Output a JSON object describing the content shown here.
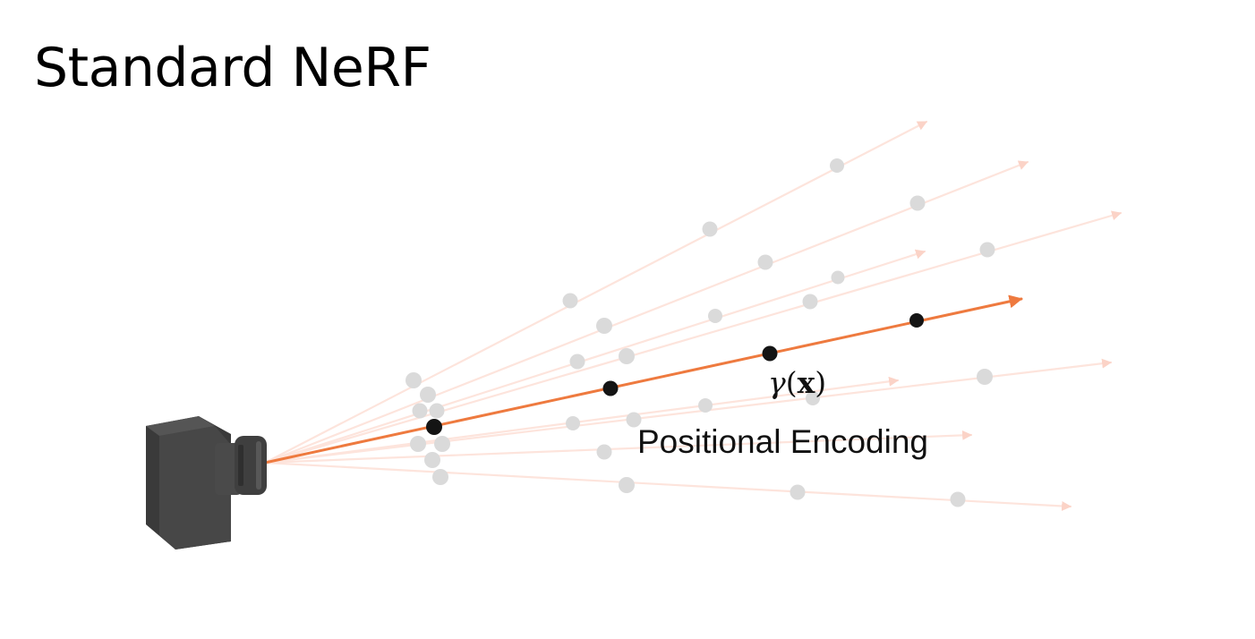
{
  "title": "Standard NeRF",
  "encoding": {
    "symbol_gamma": "γ",
    "symbol_open": "(",
    "symbol_x": "x",
    "symbol_close": ")",
    "label": "Positional Encoding"
  },
  "colors": {
    "main_ray": "#ee7a3f",
    "faded_ray": "#fbd3c7",
    "faded_point": "#d9d9d9",
    "main_point": "#141414",
    "camera_body": "#424242"
  },
  "icons": {
    "camera": "camera-icon"
  }
}
